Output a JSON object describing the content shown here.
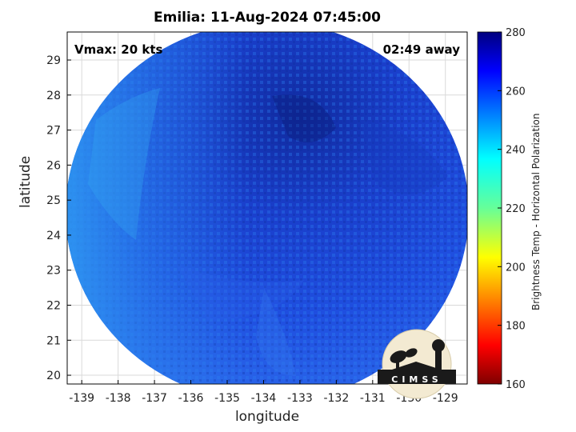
{
  "map": {
    "title": "Emilia: 11-Aug-2024 07:45:00",
    "vmax_label": "Vmax: 20 kts",
    "away_label": "02:49 away",
    "xlabel": "longitude",
    "ylabel": "latitude",
    "logo_text": "CIMSS"
  },
  "chart_data": {
    "type": "heatmap",
    "xlabel": "longitude",
    "ylabel": "latitude",
    "x_ticks": [
      -139,
      -138,
      -137,
      -136,
      -135,
      -134,
      -133,
      -132,
      -131,
      -130,
      -129
    ],
    "y_ticks": [
      20,
      21,
      22,
      23,
      24,
      25,
      26,
      27,
      28,
      29
    ],
    "xlim": [
      -139.4,
      -128.4
    ],
    "ylim": [
      19.75,
      29.8
    ],
    "grid": true,
    "colorbar": {
      "label": "Brightness Temp - Horizontal Polarization",
      "ticks": [
        160,
        180,
        200,
        220,
        240,
        260,
        280
      ],
      "range": [
        160,
        280
      ],
      "colormap": "jet"
    },
    "swath_value_range": [
      245,
      272
    ]
  },
  "colors": {
    "swath_base": "#1e4fe0",
    "swath_dark": "#0f2aa8",
    "swath_light": "#2e8ff0"
  }
}
